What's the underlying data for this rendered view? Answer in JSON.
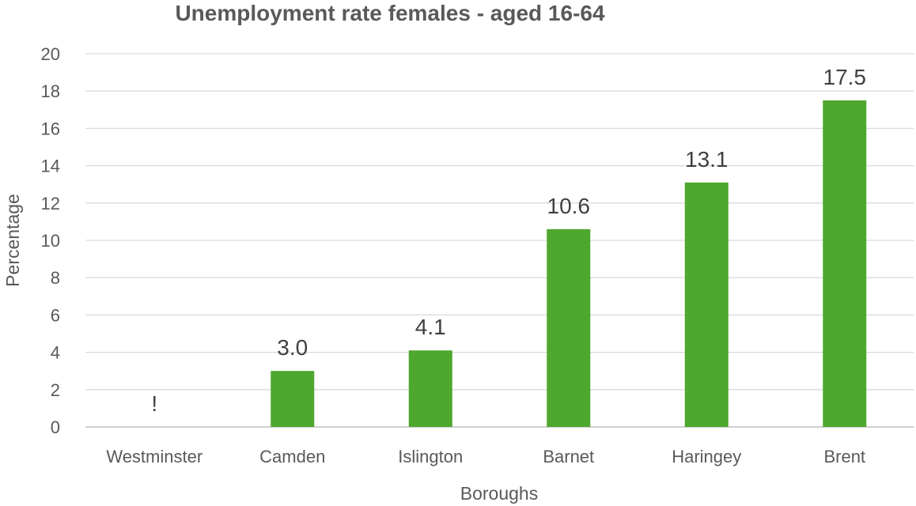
{
  "chart_data": {
    "type": "bar",
    "title": "Unemployment rate females - aged 16-64",
    "xlabel": "Boroughs",
    "ylabel": "Percentage",
    "categories": [
      "Westminster",
      "Camden",
      "Islington",
      "Barnet",
      "Haringey",
      "Brent"
    ],
    "values": [
      null,
      3.0,
      4.1,
      10.6,
      13.1,
      17.5
    ],
    "data_labels": [
      "!",
      "3.0",
      "4.1",
      "10.6",
      "13.1",
      "17.5"
    ],
    "y_ticks": [
      0,
      2,
      4,
      6,
      8,
      10,
      12,
      14,
      16,
      18,
      20
    ],
    "ylim": [
      0,
      20
    ],
    "grid": true,
    "legend": "none",
    "bar_color": "#4ea72e"
  }
}
